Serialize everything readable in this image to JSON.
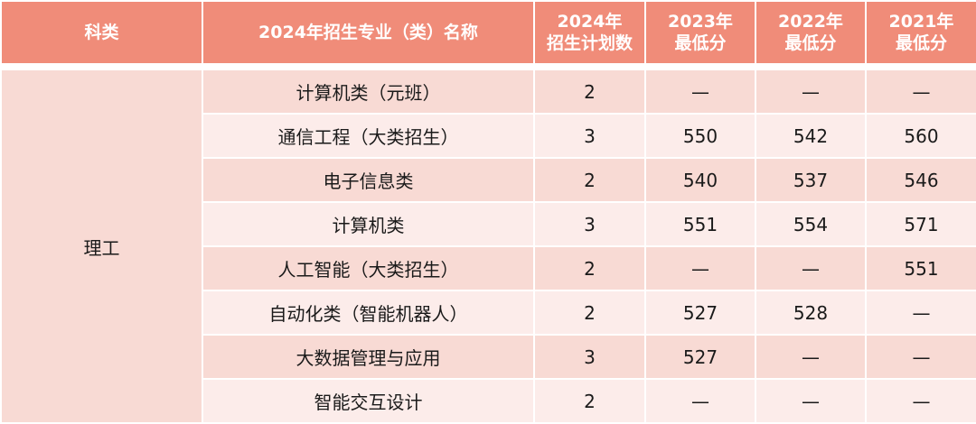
{
  "header": {
    "category": "科类",
    "major": "2024年招生专业（类）名称",
    "plan_2024": [
      "2024年",
      "招生计划数"
    ],
    "min_2023": [
      "2023年",
      "最低分"
    ],
    "min_2022": [
      "2022年",
      "最低分"
    ],
    "min_2021": [
      "2021年",
      "最低分"
    ]
  },
  "category": "理工",
  "rows": [
    {
      "major": "计算机类（元班）",
      "plan": "2",
      "y2023": "—",
      "y2022": "—",
      "y2021": "—"
    },
    {
      "major": "通信工程（大类招生）",
      "plan": "3",
      "y2023": "550",
      "y2022": "542",
      "y2021": "560"
    },
    {
      "major": "电子信息类",
      "plan": "2",
      "y2023": "540",
      "y2022": "537",
      "y2021": "546"
    },
    {
      "major": "计算机类",
      "plan": "3",
      "y2023": "551",
      "y2022": "554",
      "y2021": "571"
    },
    {
      "major": "人工智能（大类招生）",
      "plan": "2",
      "y2023": "—",
      "y2022": "—",
      "y2021": "551"
    },
    {
      "major": "自动化类（智能机器人）",
      "plan": "2",
      "y2023": "527",
      "y2022": "528",
      "y2021": "—"
    },
    {
      "major": "大数据管理与应用",
      "plan": "3",
      "y2023": "527",
      "y2022": "—",
      "y2021": "—"
    },
    {
      "major": "智能交互设计",
      "plan": "2",
      "y2023": "—",
      "y2022": "—",
      "y2021": "—"
    }
  ],
  "colors": {
    "header_bg": "#f08c79",
    "row_dark": "#f8dad4",
    "row_light": "#fcecea"
  }
}
